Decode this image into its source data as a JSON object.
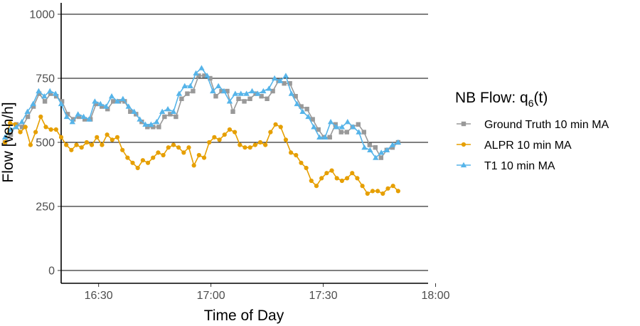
{
  "chart_data": {
    "type": "line",
    "xlabel": "Time of Day",
    "ylabel": "Flow [veh/h]",
    "ylim": [
      0,
      1000
    ],
    "yticks": [
      0,
      250,
      500,
      750,
      1000
    ],
    "ytick_labels": [
      "0",
      "250",
      "500",
      "750",
      "1000"
    ],
    "x_unit": "minutes after 16:00",
    "xlim": [
      5,
      110
    ],
    "xticks": [
      30,
      60,
      90,
      120
    ],
    "xtick_labels": [
      "16:30",
      "17:00",
      "17:30",
      "18:00"
    ],
    "grid": "horizontal major",
    "legend": {
      "title_main": "NB Flow: q",
      "title_sub": "6",
      "title_tail": "(t)",
      "placement": "right"
    },
    "series": [
      {
        "name": "Ground Truth 10 min MA",
        "color": "#999999",
        "marker": "square",
        "values": [
          500,
          530,
          570,
          560,
          600,
          640,
          690,
          660,
          690,
          680,
          660,
          610,
          590,
          600,
          590,
          590,
          650,
          640,
          630,
          660,
          660,
          660,
          620,
          610,
          580,
          560,
          560,
          560,
          600,
          610,
          600,
          670,
          690,
          700,
          760,
          760,
          750,
          680,
          700,
          700,
          620,
          670,
          660,
          670,
          690,
          680,
          670,
          700,
          740,
          730,
          730,
          680,
          640,
          630,
          590,
          550,
          520,
          520,
          570,
          540,
          540,
          560,
          570,
          540,
          490,
          480,
          440,
          470,
          480,
          500
        ]
      },
      {
        "name": "ALPR 10 min MA",
        "color": "#E69F00",
        "marker": "circle",
        "values": [
          500,
          575,
          570,
          540,
          560,
          490,
          540,
          600,
          560,
          550,
          550,
          520,
          490,
          470,
          490,
          480,
          500,
          490,
          520,
          490,
          530,
          510,
          520,
          470,
          440,
          420,
          400,
          430,
          420,
          440,
          460,
          450,
          480,
          490,
          480,
          460,
          480,
          410,
          450,
          440,
          500,
          520,
          510,
          530,
          550,
          540,
          490,
          480,
          480,
          490,
          500,
          490,
          540,
          570,
          560,
          510,
          460,
          450,
          420,
          400,
          350,
          330,
          360,
          380,
          390,
          360,
          350,
          360,
          380,
          360,
          330,
          300,
          310,
          310,
          300,
          320,
          330,
          310
        ]
      },
      {
        "name": "T1 10 min MA",
        "color": "#56B4E9",
        "marker": "triangle",
        "values": [
          520,
          550,
          560,
          580,
          620,
          650,
          700,
          680,
          700,
          690,
          650,
          600,
          580,
          610,
          600,
          590,
          660,
          650,
          640,
          680,
          660,
          670,
          640,
          620,
          590,
          570,
          570,
          580,
          620,
          630,
          620,
          690,
          720,
          720,
          770,
          790,
          760,
          700,
          720,
          700,
          660,
          690,
          690,
          690,
          700,
          690,
          700,
          710,
          750,
          740,
          760,
          690,
          650,
          620,
          600,
          560,
          520,
          520,
          580,
          560,
          560,
          580,
          560,
          540,
          480,
          470,
          440,
          460,
          470,
          490,
          500
        ]
      }
    ]
  }
}
